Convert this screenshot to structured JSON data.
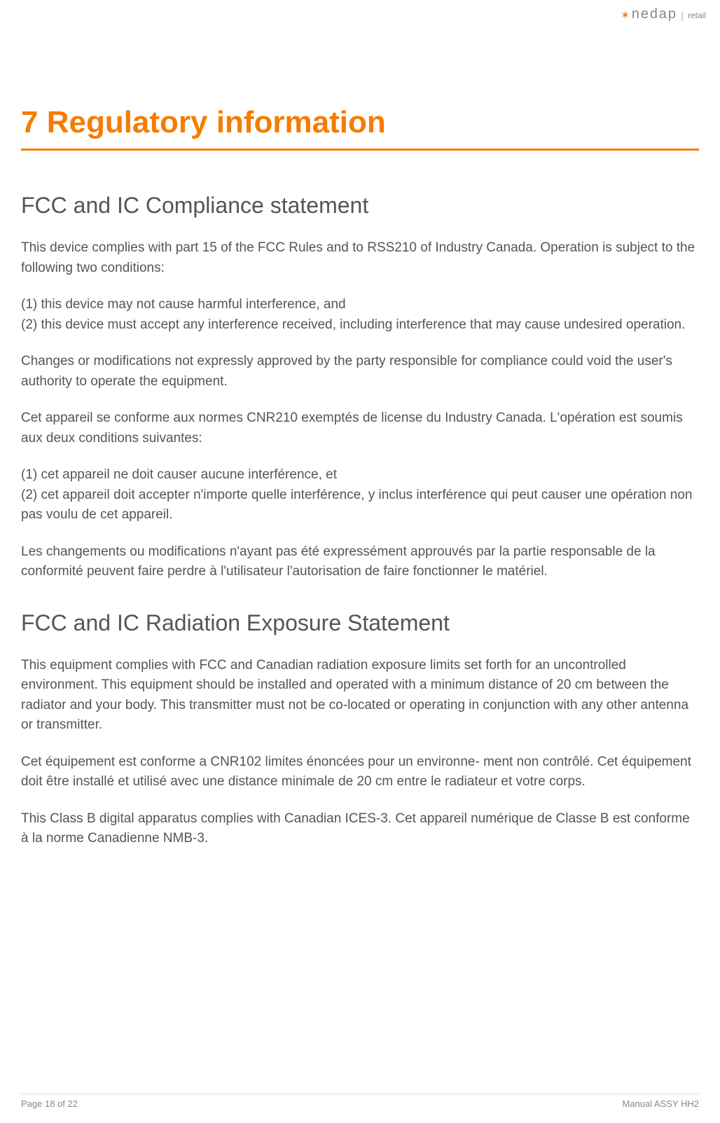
{
  "header": {
    "logo_brand": "nedap",
    "logo_division": "retail"
  },
  "content": {
    "h1": "7 Regulatory information",
    "section1": {
      "title": "FCC and IC Compliance statement",
      "p1": "This device complies with part 15 of the FCC Rules and to RSS210 of Industry Canada. Operation is subject to the following two conditions:",
      "p2": "(1) this device may not cause harmful interference, and\n(2) this device must accept any interference received, including interference that may cause undesired operation.",
      "p3": "Changes or modifications not expressly approved by the party responsible for compliance could void the user's authority to operate the equipment.",
      "p4": "Cet appareil se conforme aux normes CNR210 exemptés de license du Industry Canada. L'opération est soumis aux deux conditions suivantes:",
      "p5": "(1) cet appareil ne doit causer aucune interférence, et\n(2) cet appareil doit accepter n'importe quelle interférence, y inclus interférence qui peut causer une opération non pas voulu de cet appareil.",
      "p6": "Les changements ou modifications n'ayant pas été expressément approuvés par la partie responsable de la conformité peuvent faire perdre à l'utilisateur l'autorisation de faire fonctionner le matériel."
    },
    "section2": {
      "title": "FCC and IC Radiation Exposure Statement",
      "p1": "This equipment complies with FCC and Canadian radiation exposure limits set forth for an uncontrolled environment. This equipment should be installed and operated with a minimum distance of 20 cm between the radiator and your body. This transmitter must not be co-located or operating in conjunction with any other antenna or transmitter.",
      "p2": "Cet équipement est conforme a CNR102 limites énoncées pour un environne- ment non contrôlé. Cet équipement doit être installé et utilisé avec une distance minimale de 20 cm entre le radiateur et votre corps.",
      "p3": "This Class B digital apparatus complies with Canadian ICES-3. Cet appareil numérique de Classe B est conforme à la norme Canadienne NMB-3."
    }
  },
  "footer": {
    "page_info": "Page 18 of 22",
    "doc_title": "Manual ASSY HH2"
  },
  "colors": {
    "accent": "#f57c00",
    "body_text": "#555555",
    "footer_text": "#888888",
    "background": "#ffffff"
  }
}
